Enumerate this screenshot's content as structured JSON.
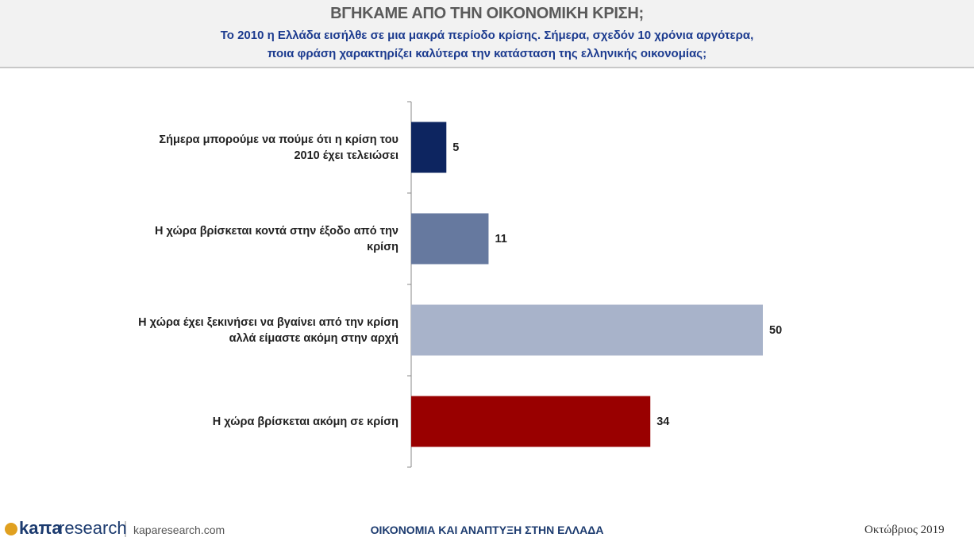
{
  "chart_data": {
    "type": "bar",
    "orientation": "horizontal",
    "title": "ΒΓΗΚΑΜΕ ΑΠΟ ΤΗΝ ΟΙΚΟΝΟΜΙΚΗ ΚΡΙΣΗ;",
    "subtitle": [
      "Το 2010 η Ελλάδα εισήλθε σε μια μακρά περίοδο κρίσης. Σήμερα, σχεδόν 10 χρόνια αργότερα,",
      "ποια φράση χαρακτηρίζει καλύτερα την κατάσταση της ελληνικής οικονομίας;"
    ],
    "categories": [
      "Σήμερα μπορούμε να πούμε ότι η κρίση του 2010 έχει τελειώσει",
      "Η χώρα βρίσκεται κοντά στην έξοδο από την κρίση",
      "Η χώρα έχει ξεκινήσει να βγαίνει από την κρίση αλλά είμαστε ακόμη στην αρχή",
      "Η χώρα βρίσκεται ακόμη σε κρίση"
    ],
    "values": [
      5,
      11,
      50,
      34
    ],
    "colors": [
      "#0d2560",
      "#66799f",
      "#a8b3ca",
      "#990000"
    ],
    "xlim": [
      0,
      50
    ]
  },
  "footer": {
    "logo_left": "kaπa",
    "logo_right": "research",
    "website": "kaparesearch.com",
    "center": "ΟΙΚΟΝΟΜΙΑ ΚΑΙ ΑΝΑΠΤΥΞΗ ΣΤΗΝ ΕΛΛΑΔΑ",
    "date": "Οκτώβριος 2019"
  }
}
